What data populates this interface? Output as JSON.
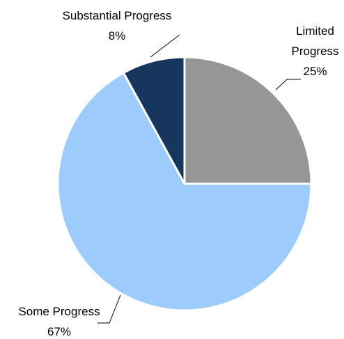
{
  "chart_data": {
    "type": "pie",
    "categories": [
      "Limited Progress",
      "Some Progress",
      "Substantial Progress"
    ],
    "values": [
      25,
      67,
      8
    ],
    "value_labels": [
      "25%",
      "67%",
      "8%"
    ],
    "colors": [
      "#969696",
      "#9dcbfb",
      "#17365d"
    ]
  }
}
